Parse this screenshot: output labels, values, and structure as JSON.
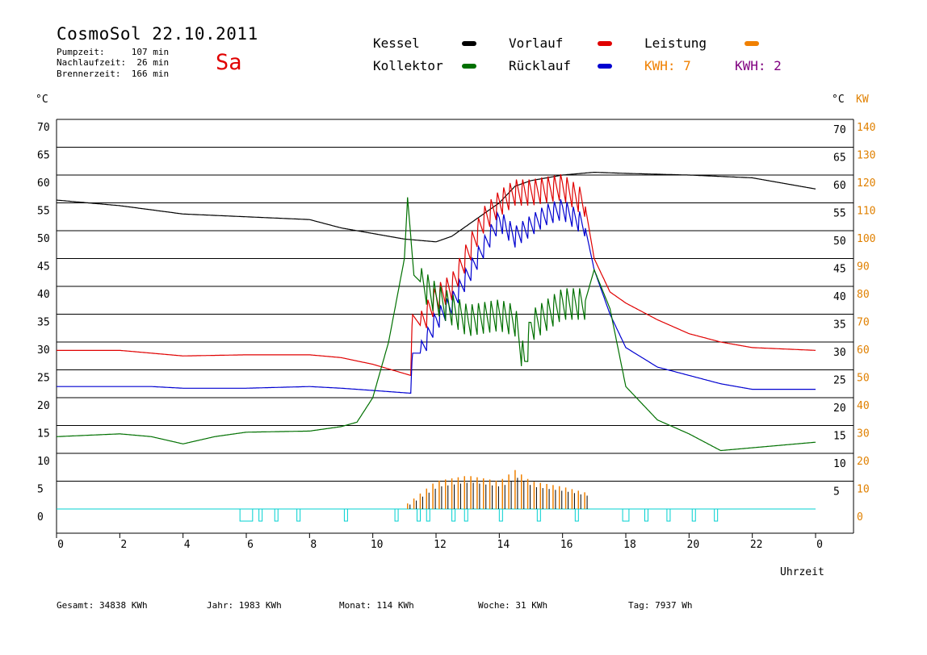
{
  "header": {
    "title": "CosmoSol 22.10.2011",
    "day": "Sa",
    "pumpzeit": "Pumpzeit:     107 min",
    "nachlaufzeit": "Nachlaufzeit:  26 min",
    "brennerzeit": "Brennerzeit:  166 min"
  },
  "legend": {
    "kessel": "Kessel",
    "vorlauf": "Vorlauf",
    "leistung": "Leistung",
    "kollektor": "Kollektor",
    "ruecklauf": "Rücklauf",
    "kwh1": "KWH: 7",
    "kwh2": "KWH: 2"
  },
  "colors": {
    "kessel": "#000000",
    "vorlauf": "#e00000",
    "ruecklauf": "#0000d0",
    "kollektor": "#007000",
    "leistung": "#f08000",
    "kwh2": "#800080",
    "pump": "#00d0d0"
  },
  "axes": {
    "left_unit": "°C",
    "right_unit_c": "°C",
    "right_unit_kw": "KW",
    "xlabel": "Uhrzeit"
  },
  "footer": {
    "gesamt": "Gesamt:  34838 KWh",
    "jahr": "Jahr:  1983 KWh",
    "monat": "Monat:   114 KWh",
    "woche": "Woche:    31 KWh",
    "tag": "Tag:   7937 Wh"
  },
  "chart_data": {
    "type": "line",
    "title": "CosmoSol 22.10.2011",
    "xlabel": "Uhrzeit",
    "ylabel": "°C",
    "xlim": [
      0,
      24
    ],
    "ylim": [
      0,
      70
    ],
    "y2lim": [
      0,
      140
    ],
    "grid": true,
    "x_ticks": [
      "0",
      "2",
      "4",
      "6",
      "8",
      "10",
      "12",
      "14",
      "16",
      "18",
      "20",
      "22",
      "0"
    ],
    "x_tick_values": [
      0,
      2,
      4,
      6,
      8,
      10,
      12,
      14,
      16,
      18,
      20,
      22,
      24
    ],
    "y_left_ticks": [
      0,
      5,
      10,
      15,
      20,
      25,
      30,
      35,
      40,
      45,
      50,
      55,
      60,
      65,
      70
    ],
    "y_right_c_ticks": [
      5,
      10,
      15,
      20,
      25,
      30,
      35,
      40,
      45,
      50,
      55,
      60,
      65,
      70
    ],
    "y_right_kw_ticks": [
      0,
      10,
      20,
      30,
      40,
      50,
      60,
      70,
      80,
      90,
      100,
      110,
      120,
      130,
      140
    ],
    "series": [
      {
        "name": "Kessel",
        "color": "#000000",
        "oscillate": null,
        "points": [
          [
            0,
            55.5
          ],
          [
            2,
            54.5
          ],
          [
            4,
            53
          ],
          [
            6,
            52.5
          ],
          [
            8,
            52
          ],
          [
            9,
            50.5
          ],
          [
            10,
            49.5
          ],
          [
            11,
            48.5
          ],
          [
            12,
            48
          ],
          [
            12.5,
            49
          ],
          [
            13,
            51
          ],
          [
            14,
            55
          ],
          [
            14.5,
            58
          ],
          [
            15,
            59
          ],
          [
            16,
            60
          ],
          [
            17,
            60.5
          ],
          [
            18,
            60.3
          ],
          [
            20,
            60
          ],
          [
            22,
            59.5
          ],
          [
            23,
            58.5
          ],
          [
            24,
            57.5
          ]
        ]
      },
      {
        "name": "Vorlauf",
        "color": "#e00000",
        "oscillate": {
          "from": 11.5,
          "to": 16.7,
          "period": 0.2,
          "amp": 5
        },
        "points": [
          [
            0,
            28.5
          ],
          [
            2,
            28.5
          ],
          [
            4,
            27.5
          ],
          [
            6,
            27.7
          ],
          [
            8,
            27.7
          ],
          [
            9,
            27.2
          ],
          [
            10,
            26
          ],
          [
            11.2,
            24
          ],
          [
            11.25,
            35
          ],
          [
            11.5,
            33
          ],
          [
            12,
            38
          ],
          [
            12.5,
            40
          ],
          [
            13,
            46
          ],
          [
            13.5,
            52
          ],
          [
            14,
            55
          ],
          [
            14.5,
            57
          ],
          [
            15,
            57
          ],
          [
            16,
            58
          ],
          [
            16.7,
            55
          ],
          [
            17,
            45
          ],
          [
            17.5,
            39
          ],
          [
            18,
            37
          ],
          [
            19,
            34
          ],
          [
            20,
            31.5
          ],
          [
            21,
            30
          ],
          [
            22,
            29
          ],
          [
            24,
            28.5
          ]
        ]
      },
      {
        "name": "Rücklauf",
        "color": "#0000d0",
        "oscillate": {
          "from": 11.5,
          "to": 16.7,
          "period": 0.2,
          "amp": 4
        },
        "points": [
          [
            0,
            22
          ],
          [
            3,
            22
          ],
          [
            4,
            21.7
          ],
          [
            6,
            21.7
          ],
          [
            8,
            22
          ],
          [
            9,
            21.7
          ],
          [
            10,
            21.3
          ],
          [
            11.2,
            20.8
          ],
          [
            11.25,
            28
          ],
          [
            11.5,
            28
          ],
          [
            12,
            34
          ],
          [
            12.5,
            37
          ],
          [
            13,
            42
          ],
          [
            13.5,
            47
          ],
          [
            14,
            52
          ],
          [
            14.5,
            49
          ],
          [
            15,
            51
          ],
          [
            15.5,
            53
          ],
          [
            16,
            54
          ],
          [
            16.7,
            51
          ],
          [
            17,
            43
          ],
          [
            17.5,
            35
          ],
          [
            18,
            29
          ],
          [
            19,
            25.5
          ],
          [
            20,
            24
          ],
          [
            21,
            22.5
          ],
          [
            22,
            21.5
          ],
          [
            24,
            21.5
          ]
        ]
      },
      {
        "name": "Kollektor",
        "color": "#007000",
        "oscillate": {
          "from": 11.5,
          "to": 16.7,
          "period": 0.2,
          "amp": 6
        },
        "points": [
          [
            0,
            13
          ],
          [
            2,
            13.5
          ],
          [
            3,
            13
          ],
          [
            4,
            11.7
          ],
          [
            5,
            13
          ],
          [
            6,
            13.8
          ],
          [
            8,
            14
          ],
          [
            9,
            14.8
          ],
          [
            9.5,
            15.6
          ],
          [
            10,
            20
          ],
          [
            10.5,
            30
          ],
          [
            11,
            45
          ],
          [
            11.1,
            56
          ],
          [
            11.3,
            42
          ],
          [
            12,
            38
          ],
          [
            13,
            34
          ],
          [
            14,
            35
          ],
          [
            14.5,
            34
          ],
          [
            14.8,
            26
          ],
          [
            15,
            33
          ],
          [
            16,
            37
          ],
          [
            16.7,
            37
          ],
          [
            17,
            43
          ],
          [
            17.5,
            36
          ],
          [
            18,
            22
          ],
          [
            19,
            16
          ],
          [
            20,
            13.5
          ],
          [
            21,
            10.5
          ],
          [
            22,
            11
          ],
          [
            23,
            11.5
          ],
          [
            24,
            12
          ]
        ]
      },
      {
        "name": "Leistung",
        "color": "#f08000",
        "bars": {
          "from": 11.1,
          "to": 16.7,
          "period": 0.2
        },
        "points": [
          [
            11.1,
            1
          ],
          [
            12,
            5
          ],
          [
            13,
            6
          ],
          [
            14,
            5
          ],
          [
            14.5,
            7
          ],
          [
            15,
            5
          ],
          [
            16,
            4
          ],
          [
            16.7,
            3
          ]
        ]
      }
    ],
    "pump_pulses": [
      [
        5.8,
        6.2
      ],
      [
        6.4,
        6.5
      ],
      [
        6.9,
        7.0
      ],
      [
        7.6,
        7.7
      ],
      [
        9.1,
        9.2
      ],
      [
        10.7,
        10.8
      ],
      [
        11.4,
        11.5
      ],
      [
        11.7,
        11.8
      ],
      [
        12.5,
        12.6
      ],
      [
        12.9,
        13.0
      ],
      [
        14.0,
        14.1
      ],
      [
        15.2,
        15.3
      ],
      [
        16.4,
        16.5
      ],
      [
        17.9,
        18.1
      ],
      [
        18.6,
        18.7
      ],
      [
        19.3,
        19.4
      ],
      [
        20.1,
        20.2
      ],
      [
        20.8,
        20.9
      ]
    ]
  }
}
